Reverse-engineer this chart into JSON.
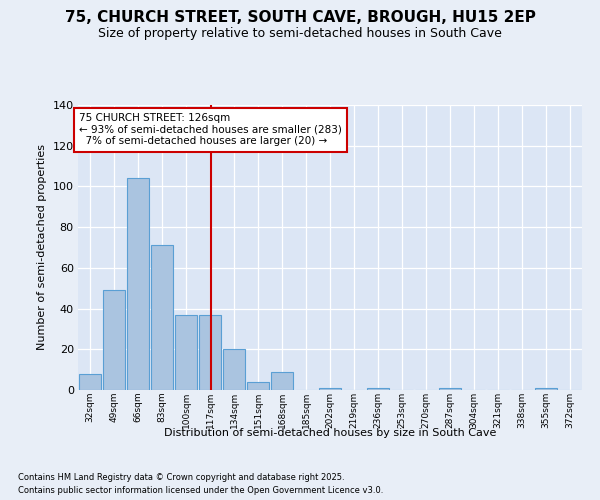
{
  "title": "75, CHURCH STREET, SOUTH CAVE, BROUGH, HU15 2EP",
  "subtitle": "Size of property relative to semi-detached houses in South Cave",
  "xlabel": "Distribution of semi-detached houses by size in South Cave",
  "ylabel": "Number of semi-detached properties",
  "footnote1": "Contains HM Land Registry data © Crown copyright and database right 2025.",
  "footnote2": "Contains public sector information licensed under the Open Government Licence v3.0.",
  "bins": [
    32,
    49,
    66,
    83,
    100,
    117,
    134,
    151,
    168,
    185,
    202,
    219,
    236,
    253,
    270,
    287,
    304,
    321,
    338,
    355,
    372
  ],
  "bin_labels": [
    "32sqm",
    "49sqm",
    "66sqm",
    "83sqm",
    "100sqm",
    "117sqm",
    "134sqm",
    "151sqm",
    "168sqm",
    "185sqm",
    "202sqm",
    "219sqm",
    "236sqm",
    "253sqm",
    "270sqm",
    "287sqm",
    "304sqm",
    "321sqm",
    "338sqm",
    "355sqm",
    "372sqm"
  ],
  "values": [
    8,
    49,
    104,
    71,
    37,
    37,
    20,
    4,
    9,
    0,
    1,
    0,
    1,
    0,
    0,
    1,
    0,
    0,
    0,
    1,
    0
  ],
  "bar_color": "#aac4e0",
  "bar_edge_color": "#5a9fd4",
  "property_size": 126,
  "pct_smaller": 93,
  "n_smaller": 283,
  "pct_larger": 7,
  "n_larger": 20,
  "vline_color": "#cc0000",
  "annotation_box_color": "#cc0000",
  "bg_color": "#e8eef7",
  "plot_bg_color": "#dce6f5",
  "ylim": [
    0,
    140
  ],
  "yticks": [
    0,
    20,
    40,
    60,
    80,
    100,
    120,
    140
  ]
}
